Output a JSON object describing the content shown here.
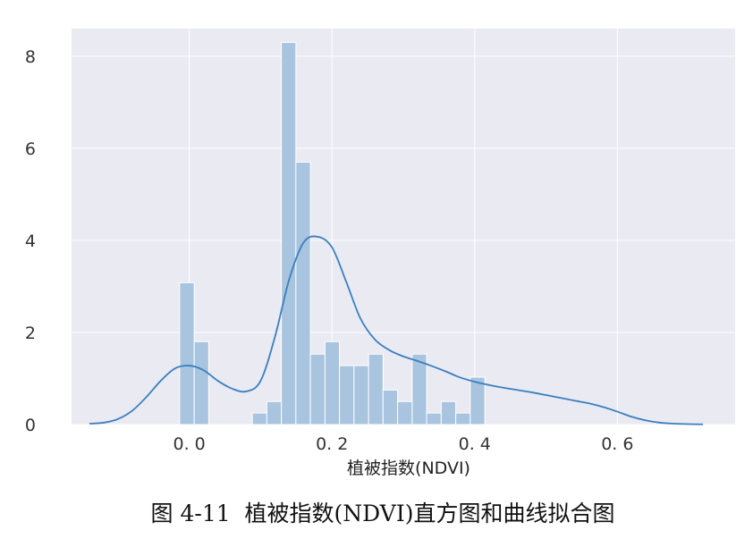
{
  "chart_data": {
    "type": "bar",
    "subtype": "histogram-with-kde",
    "title": "",
    "xlabel": "植被指数(NDVI)",
    "ylabel": "",
    "caption": "图 4-11  植被指数(NDVI)直方图和曲线拟合图",
    "xlim": [
      -0.165,
      0.765
    ],
    "ylim": [
      0,
      8.6
    ],
    "xticks": [
      0.0,
      0.2,
      0.4,
      0.6
    ],
    "xtick_labels": [
      "0. 0",
      "0. 2",
      "0. 4",
      "0. 6"
    ],
    "yticks": [
      0,
      2,
      4,
      6,
      8
    ],
    "ytick_labels": [
      "0",
      "2",
      "4",
      "6",
      "8"
    ],
    "grid": true,
    "colors": {
      "bar": "#a8c4de",
      "bar_edge": "#ffffff",
      "kde": "#3a7fc0",
      "plot_background": "#eaeaf2",
      "grid": "#ffffff"
    },
    "bins": [
      {
        "x0": -0.0135,
        "x1": 0.0069,
        "value": 3.08
      },
      {
        "x0": 0.0069,
        "x1": 0.0272,
        "value": 1.8
      },
      {
        "x0": 0.0884,
        "x1": 0.1087,
        "value": 0.25
      },
      {
        "x0": 0.1087,
        "x1": 0.1291,
        "value": 0.5
      },
      {
        "x0": 0.1291,
        "x1": 0.1494,
        "value": 8.3
      },
      {
        "x0": 0.1494,
        "x1": 0.1698,
        "value": 5.7
      },
      {
        "x0": 0.1698,
        "x1": 0.1902,
        "value": 1.53
      },
      {
        "x0": 0.1902,
        "x1": 0.2105,
        "value": 1.8
      },
      {
        "x0": 0.2105,
        "x1": 0.2309,
        "value": 1.28
      },
      {
        "x0": 0.2309,
        "x1": 0.2513,
        "value": 1.28
      },
      {
        "x0": 0.2513,
        "x1": 0.2716,
        "value": 1.53
      },
      {
        "x0": 0.2716,
        "x1": 0.292,
        "value": 0.75
      },
      {
        "x0": 0.292,
        "x1": 0.3124,
        "value": 0.5
      },
      {
        "x0": 0.3124,
        "x1": 0.3327,
        "value": 1.53
      },
      {
        "x0": 0.3327,
        "x1": 0.3531,
        "value": 0.25
      },
      {
        "x0": 0.3531,
        "x1": 0.3735,
        "value": 0.5
      },
      {
        "x0": 0.3735,
        "x1": 0.3938,
        "value": 0.25
      },
      {
        "x0": 0.3938,
        "x1": 0.4142,
        "value": 1.03
      }
    ],
    "kde": {
      "x": [
        -0.14,
        -0.12,
        -0.1,
        -0.08,
        -0.06,
        -0.04,
        -0.02,
        0.0,
        0.02,
        0.04,
        0.06,
        0.08,
        0.1,
        0.12,
        0.14,
        0.16,
        0.18,
        0.2,
        0.22,
        0.24,
        0.26,
        0.28,
        0.3,
        0.32,
        0.34,
        0.36,
        0.38,
        0.4,
        0.42,
        0.44,
        0.46,
        0.48,
        0.5,
        0.52,
        0.54,
        0.56,
        0.58,
        0.6,
        0.62,
        0.64,
        0.66,
        0.68,
        0.7,
        0.72
      ],
      "y": [
        0.02,
        0.04,
        0.12,
        0.3,
        0.6,
        0.95,
        1.22,
        1.28,
        1.18,
        0.95,
        0.78,
        0.72,
        0.95,
        1.9,
        3.15,
        3.95,
        4.08,
        3.85,
        3.1,
        2.3,
        1.85,
        1.62,
        1.48,
        1.38,
        1.27,
        1.15,
        1.02,
        0.93,
        0.86,
        0.8,
        0.75,
        0.7,
        0.64,
        0.58,
        0.52,
        0.46,
        0.38,
        0.28,
        0.17,
        0.09,
        0.04,
        0.02,
        0.01,
        0.005
      ]
    }
  }
}
